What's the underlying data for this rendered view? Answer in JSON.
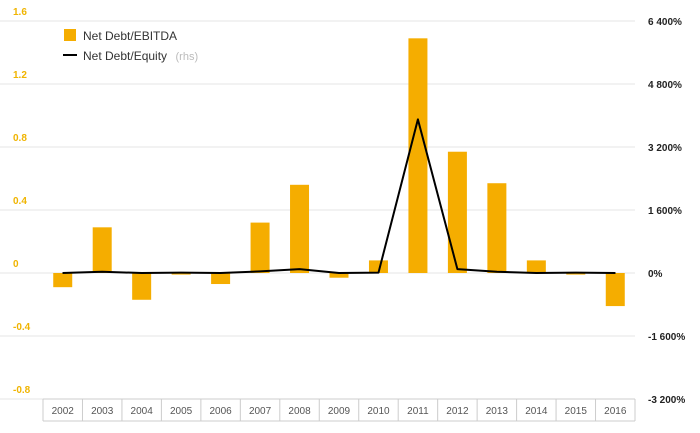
{
  "chart_data": {
    "type": "bar",
    "categories": [
      "2002",
      "2003",
      "2004",
      "2005",
      "2006",
      "2007",
      "2008",
      "2009",
      "2010",
      "2011",
      "2012",
      "2013",
      "2014",
      "2015",
      "2016"
    ],
    "series": [
      {
        "name": "Net Debt/EBITDA",
        "type": "bar",
        "axis": "left",
        "color": "#f5ad00",
        "values": [
          -0.09,
          0.29,
          -0.17,
          -0.01,
          -0.07,
          0.32,
          0.56,
          -0.03,
          0.08,
          1.49,
          0.77,
          0.57,
          0.08,
          -0.01,
          -0.21
        ]
      },
      {
        "name": "Net Debt/Equity",
        "type": "line",
        "axis": "right",
        "color": "#000000",
        "values": [
          0,
          30,
          0,
          10,
          0,
          40,
          100,
          0,
          10,
          3900,
          100,
          30,
          0,
          10,
          0
        ]
      }
    ],
    "legend": {
      "bar_label": "Net Debt/EBITDA",
      "line_label": "Net Debt/Equity",
      "line_suffix": "(rhs)"
    },
    "left_axis": {
      "ylim": [
        -0.8,
        1.6
      ],
      "ticks": [
        -0.8,
        -0.4,
        0,
        0.4,
        0.8,
        1.2,
        1.6
      ],
      "tick_labels": [
        "-0.8",
        "-0.4",
        "0",
        "0.4",
        "0.8",
        "1.2",
        "1.6"
      ],
      "color": "#f0b400"
    },
    "right_axis": {
      "ylim": [
        -3200,
        6400
      ],
      "ticks": [
        -3200,
        -1600,
        0,
        1600,
        3200,
        4800,
        6400
      ],
      "tick_labels": [
        "-3 200%",
        "-1 600%",
        "0%",
        "1 600%",
        "3 200%",
        "4 800%",
        "6 400%"
      ]
    },
    "grid": true
  }
}
